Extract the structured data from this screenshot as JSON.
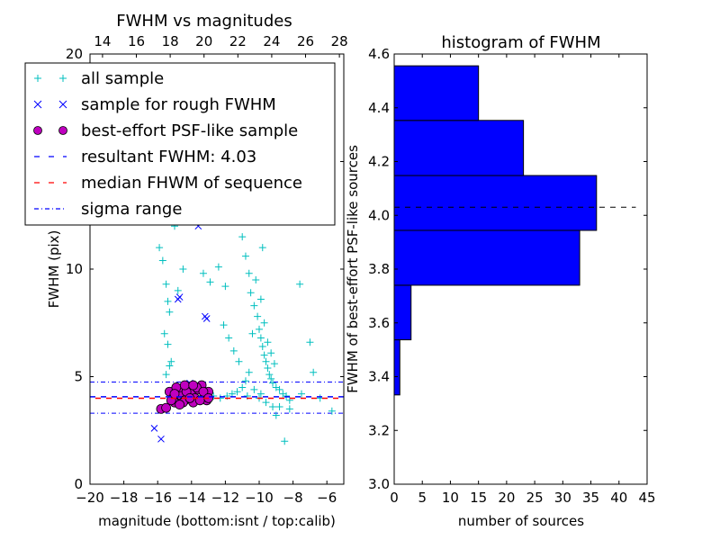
{
  "chart_data": [
    {
      "type": "scatter",
      "title": "FWHM vs magnitudes",
      "xlabel": "magnitude (bottom:isnt / top:calib)",
      "ylabel": "FWHM (pix)",
      "xlim": [
        -20,
        -5
      ],
      "ylim": [
        0,
        20
      ],
      "xticks": [
        -20,
        -18,
        -16,
        -14,
        -12,
        -10,
        -8,
        -6
      ],
      "xtick_labels": [
        "−20",
        "−18",
        "−16",
        "−14",
        "−12",
        "−10",
        "−8",
        "−6"
      ],
      "yticks": [
        0,
        5,
        10,
        15,
        20
      ],
      "ytick_labels": [
        "0",
        "5",
        "10",
        "15",
        "20"
      ],
      "top_xticks": [
        14,
        16,
        18,
        20,
        22,
        24,
        26,
        28
      ],
      "top_xtick_labels": [
        "14",
        "16",
        "18",
        "20",
        "22",
        "24",
        "26",
        "28"
      ],
      "top_offset": 33.26,
      "legend": {
        "placement": "upper-left",
        "entries": [
          {
            "label": "all sample",
            "marker": "+",
            "color": "#00bfbf"
          },
          {
            "label": "sample for rough FWHM",
            "marker": "x",
            "color": "#0000ff"
          },
          {
            "label": "best-effort PSF-like sample",
            "marker": "o",
            "color": "#bf00bf"
          },
          {
            "label": "resultant FWHM: 4.03",
            "line": "dashed",
            "color": "#0000ff"
          },
          {
            "label": "median FHWM of sequence",
            "line": "dashed",
            "color": "#ff0000"
          },
          {
            "label": "sigma range",
            "line": "dashdot",
            "color": "#0000ff"
          }
        ]
      },
      "resultant_fwhm": 4.03,
      "median_fwhm": 4.03,
      "sigma_range": [
        3.3,
        4.75
      ],
      "series": [
        {
          "name": "all sample",
          "color": "#00bfbf",
          "points": [
            [
              -15.9,
              11.0
            ],
            [
              -15.7,
              10.4
            ],
            [
              -15.5,
              9.3
            ],
            [
              -15.4,
              8.5
            ],
            [
              -15.3,
              8.0
            ],
            [
              -15.6,
              7.0
            ],
            [
              -15.4,
              6.5
            ],
            [
              -15.2,
              5.7
            ],
            [
              -15.5,
              5.1
            ],
            [
              -15.3,
              5.5
            ],
            [
              -14.8,
              9.0
            ],
            [
              -14.5,
              10.0
            ],
            [
              -13.3,
              9.8
            ],
            [
              -12.9,
              9.4
            ],
            [
              -12.4,
              10.1
            ],
            [
              -12.0,
              9.2
            ],
            [
              -12.1,
              7.4
            ],
            [
              -11.8,
              6.8
            ],
            [
              -11.5,
              6.2
            ],
            [
              -11.2,
              5.7
            ],
            [
              -11.0,
              11.5
            ],
            [
              -10.8,
              10.6
            ],
            [
              -10.6,
              9.8
            ],
            [
              -10.5,
              8.9
            ],
            [
              -10.3,
              8.3
            ],
            [
              -10.1,
              7.8
            ],
            [
              -10.0,
              7.2
            ],
            [
              -9.9,
              6.8
            ],
            [
              -9.8,
              6.4
            ],
            [
              -9.7,
              6.0
            ],
            [
              -9.6,
              5.7
            ],
            [
              -9.5,
              5.4
            ],
            [
              -9.4,
              5.1
            ],
            [
              -9.3,
              4.9
            ],
            [
              -9.2,
              4.7
            ],
            [
              -9.0,
              4.5
            ],
            [
              -8.8,
              4.4
            ],
            [
              -8.6,
              4.2
            ],
            [
              -8.4,
              4.1
            ],
            [
              -8.2,
              3.9
            ],
            [
              -10.2,
              9.5
            ],
            [
              -10.4,
              7.0
            ],
            [
              -9.9,
              8.6
            ],
            [
              -9.7,
              7.5
            ],
            [
              -9.5,
              6.6
            ],
            [
              -9.3,
              6.1
            ],
            [
              -9.1,
              5.6
            ],
            [
              -10.6,
              5.2
            ],
            [
              -10.8,
              4.8
            ],
            [
              -11.0,
              4.5
            ],
            [
              -11.3,
              4.3
            ],
            [
              -11.6,
              4.2
            ],
            [
              -11.9,
              4.1
            ],
            [
              -12.3,
              4.0
            ],
            [
              -12.7,
              4.1
            ],
            [
              -10.0,
              4.0
            ],
            [
              -9.6,
              3.8
            ],
            [
              -9.2,
              3.6
            ],
            [
              -8.8,
              3.6
            ],
            [
              -8.2,
              3.5
            ],
            [
              -7.5,
              4.2
            ],
            [
              -7.0,
              6.6
            ],
            [
              -7.6,
              9.3
            ],
            [
              -6.8,
              5.2
            ],
            [
              -6.4,
              4.0
            ],
            [
              -5.7,
              3.4
            ],
            [
              -9.0,
              3.2
            ],
            [
              -8.5,
              2.0
            ],
            [
              -9.8,
              11.0
            ],
            [
              -10.1,
              12.5
            ],
            [
              -13.0,
              13.5
            ],
            [
              -11.9,
              16.0
            ],
            [
              -10.5,
              18.0
            ],
            [
              -9.4,
              17.5
            ],
            [
              -12.5,
              14.4
            ],
            [
              -15.0,
              12.0
            ],
            [
              -14.2,
              15.5
            ],
            [
              -10.3,
              4.4
            ],
            [
              -9.9,
              4.2
            ],
            [
              -10.7,
              4.1
            ]
          ]
        },
        {
          "name": "sample for rough FWHM",
          "color": "#0000ff",
          "points": [
            [
              -13.6,
              12.0
            ],
            [
              -14.7,
              8.7
            ],
            [
              -14.8,
              8.6
            ],
            [
              -13.2,
              7.8
            ],
            [
              -13.1,
              7.7
            ],
            [
              -16.2,
              2.6
            ],
            [
              -15.8,
              2.1
            ],
            [
              -14.1,
              4.7
            ]
          ]
        },
        {
          "name": "best-effort PSF-like sample",
          "color": "#bf00bf",
          "points": [
            [
              -15.8,
              3.5
            ],
            [
              -15.5,
              3.55
            ],
            [
              -15.3,
              4.3
            ],
            [
              -15.1,
              4.0
            ],
            [
              -15.0,
              3.8
            ],
            [
              -14.8,
              4.4
            ],
            [
              -14.6,
              4.1
            ],
            [
              -14.4,
              3.9
            ],
            [
              -14.2,
              4.5
            ],
            [
              -14.0,
              4.2
            ],
            [
              -13.8,
              4.0
            ],
            [
              -13.6,
              4.4
            ],
            [
              -13.4,
              4.6
            ],
            [
              -13.2,
              4.1
            ],
            [
              -13.1,
              3.9
            ],
            [
              -13.0,
              4.3
            ],
            [
              -14.9,
              4.5
            ],
            [
              -14.5,
              3.8
            ],
            [
              -14.3,
              4.3
            ],
            [
              -13.9,
              3.8
            ],
            [
              -13.7,
              4.5
            ],
            [
              -13.5,
              3.9
            ],
            [
              -15.2,
              3.9
            ],
            [
              -14.7,
              3.7
            ],
            [
              -14.1,
              4.0
            ],
            [
              -13.3,
              4.3
            ],
            [
              -15.0,
              4.2
            ],
            [
              -14.4,
              4.6
            ],
            [
              -13.9,
              4.6
            ],
            [
              -13.0,
              4.0
            ]
          ]
        }
      ]
    },
    {
      "type": "bar",
      "orientation": "horizontal",
      "title": "histogram of FWHM",
      "xlabel": "number of sources",
      "ylabel": "FWHM of best-effort PSF-like sources",
      "xlim": [
        0,
        45
      ],
      "ylim": [
        3.0,
        4.6
      ],
      "xticks": [
        0,
        5,
        10,
        15,
        20,
        25,
        30,
        35,
        40,
        45
      ],
      "xtick_labels": [
        "0",
        "5",
        "10",
        "15",
        "20",
        "25",
        "30",
        "35",
        "40",
        "45"
      ],
      "yticks": [
        3.0,
        3.2,
        3.4,
        3.6,
        3.8,
        4.0,
        4.2,
        4.4,
        4.6
      ],
      "ytick_labels": [
        "3.0",
        "3.2",
        "3.4",
        "3.6",
        "3.8",
        "4.0",
        "4.2",
        "4.4",
        "4.6"
      ],
      "bin_edges": [
        3.332,
        3.537,
        3.74,
        3.944,
        4.148,
        4.353,
        4.556
      ],
      "values": [
        1,
        3,
        33,
        36,
        23,
        15
      ],
      "bar_color": "#0000ff",
      "reference_line": {
        "value": 4.03,
        "xmax": 43,
        "style": "dashed",
        "color": "#000000"
      }
    }
  ]
}
